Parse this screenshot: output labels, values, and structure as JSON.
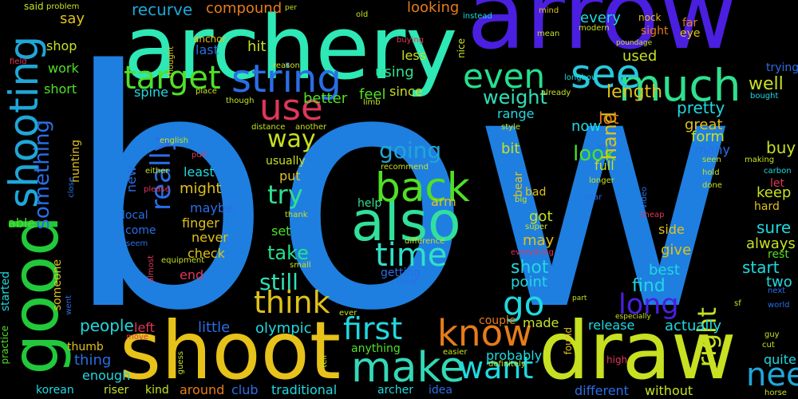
{
  "words": [
    {
      "text": "bow",
      "color": "#1e7fe0"
    },
    {
      "text": "arrow",
      "color": "#4a1fe0"
    },
    {
      "text": "archery",
      "color": "#2ee8b5"
    },
    {
      "text": "shoot",
      "color": "#e6c21a"
    },
    {
      "text": "draw",
      "color": "#c7e021"
    },
    {
      "text": "good",
      "color": "#22c93a"
    },
    {
      "text": "shooting",
      "color": "#1fa7d8"
    },
    {
      "text": "also",
      "color": "#31e09a"
    },
    {
      "text": "back",
      "color": "#4fe026"
    },
    {
      "text": "string",
      "color": "#2a6ee6"
    },
    {
      "text": "much",
      "color": "#2fe08f"
    },
    {
      "text": "see",
      "color": "#27c8dd"
    },
    {
      "text": "even",
      "color": "#24e08c"
    },
    {
      "text": "use",
      "color": "#e0365a"
    },
    {
      "text": "target",
      "color": "#4fe026"
    },
    {
      "text": "really",
      "color": "#2a6ee6"
    },
    {
      "text": "time",
      "color": "#31e0c8"
    },
    {
      "text": "make",
      "color": "#33d9b8"
    },
    {
      "text": "know",
      "color": "#e67c1a"
    },
    {
      "text": "go",
      "color": "#1fd9e0"
    },
    {
      "text": "think",
      "color": "#e0c21a"
    },
    {
      "text": "first",
      "color": "#1fd9e0"
    },
    {
      "text": "want",
      "color": "#1fd9e0"
    },
    {
      "text": "need",
      "color": "#1fa7d8"
    },
    {
      "text": "long",
      "color": "#4a1fe0"
    },
    {
      "text": "try",
      "color": "#2fe08f"
    },
    {
      "text": "way",
      "color": "#c7e021"
    },
    {
      "text": "going",
      "color": "#1fa7d8"
    },
    {
      "text": "still",
      "color": "#2fe0b5"
    },
    {
      "text": "take",
      "color": "#24e08c"
    },
    {
      "text": "right",
      "color": "#c7e021"
    },
    {
      "text": "something",
      "color": "#2a6ee6"
    },
    {
      "text": "people",
      "color": "#1fd9e0"
    },
    {
      "text": "look",
      "color": "#4fe026"
    },
    {
      "text": "weight",
      "color": "#2fe0b5"
    },
    {
      "text": "shot",
      "color": "#1fd9e0"
    },
    {
      "text": "find",
      "color": "#1fd9e0"
    },
    {
      "text": "hand",
      "color": "#e0c21a"
    },
    {
      "text": "length",
      "color": "#e0c21a"
    },
    {
      "text": "pretty",
      "color": "#1fd9e0"
    },
    {
      "text": "lot",
      "color": "#e67c1a"
    },
    {
      "text": "well",
      "color": "#c7e021"
    },
    {
      "text": "great",
      "color": "#e0c21a"
    },
    {
      "text": "form",
      "color": "#c7e021"
    },
    {
      "text": "buy",
      "color": "#c7e021"
    },
    {
      "text": "keep",
      "color": "#c7e021"
    },
    {
      "text": "sure",
      "color": "#1fd9e0"
    },
    {
      "text": "start",
      "color": "#1fd9e0"
    },
    {
      "text": "two",
      "color": "#1fd9e0"
    },
    {
      "text": "always",
      "color": "#c7e021"
    },
    {
      "text": "give",
      "color": "#e0c21a"
    },
    {
      "text": "side",
      "color": "#e0c21a"
    },
    {
      "text": "best",
      "color": "#1fd9e0"
    },
    {
      "text": "point",
      "color": "#1fd9e0"
    },
    {
      "text": "may",
      "color": "#e0c21a"
    },
    {
      "text": "got",
      "color": "#c7e021"
    },
    {
      "text": "bit",
      "color": "#c7e021"
    },
    {
      "text": "now",
      "color": "#1fd9e0"
    },
    {
      "text": "range",
      "color": "#1fd9e0"
    },
    {
      "text": "full",
      "color": "#c7e021"
    },
    {
      "text": "recurve",
      "color": "#1fa7d8"
    },
    {
      "text": "compound",
      "color": "#e67c1a"
    },
    {
      "text": "better",
      "color": "#4fe026"
    },
    {
      "text": "feel",
      "color": "#4fe026"
    },
    {
      "text": "looking",
      "color": "#e67c1a"
    },
    {
      "text": "every",
      "color": "#1fd9e0"
    },
    {
      "text": "used",
      "color": "#c7e021"
    },
    {
      "text": "hit",
      "color": "#c7e021"
    },
    {
      "text": "last",
      "color": "#2a6ee6"
    },
    {
      "text": "using",
      "color": "#2fe08f"
    },
    {
      "text": "since",
      "color": "#c7e021"
    },
    {
      "text": "less",
      "color": "#c7e021"
    },
    {
      "text": "say",
      "color": "#e0c21a"
    },
    {
      "text": "shop",
      "color": "#c7e021"
    },
    {
      "text": "work",
      "color": "#4fe026"
    },
    {
      "text": "short",
      "color": "#4fe026"
    },
    {
      "text": "spine",
      "color": "#1fd9e0"
    },
    {
      "text": "able",
      "color": "#4fe026"
    },
    {
      "text": "might",
      "color": "#e0c21a"
    },
    {
      "text": "maybe",
      "color": "#2a6ee6"
    },
    {
      "text": "finger",
      "color": "#e0c21a"
    },
    {
      "text": "never",
      "color": "#e0c21a"
    },
    {
      "text": "check",
      "color": "#e0c21a"
    },
    {
      "text": "end",
      "color": "#e0365a"
    },
    {
      "text": "least",
      "color": "#1fd9e0"
    },
    {
      "text": "new",
      "color": "#2a6ee6"
    },
    {
      "text": "local",
      "color": "#2a6ee6"
    },
    {
      "text": "come",
      "color": "#2a6ee6"
    },
    {
      "text": "usually",
      "color": "#c7e021"
    },
    {
      "text": "put",
      "color": "#e0c21a"
    },
    {
      "text": "set",
      "color": "#4fe026"
    },
    {
      "text": "arm",
      "color": "#e0c21a"
    },
    {
      "text": "help",
      "color": "#2fe08f"
    },
    {
      "text": "getting",
      "color": "#2a6ee6"
    },
    {
      "text": "little",
      "color": "#2a6ee6"
    },
    {
      "text": "olympic",
      "color": "#1fd9e0"
    },
    {
      "text": "thing",
      "color": "#2a6ee6"
    },
    {
      "text": "enough",
      "color": "#1fd9e0"
    },
    {
      "text": "thumb",
      "color": "#e0c21a"
    },
    {
      "text": "left",
      "color": "#e0365a"
    },
    {
      "text": "korean",
      "color": "#1fd9e0"
    },
    {
      "text": "riser",
      "color": "#c7e021"
    },
    {
      "text": "kind",
      "color": "#c7e021"
    },
    {
      "text": "around",
      "color": "#e67c1a"
    },
    {
      "text": "club",
      "color": "#2a6ee6"
    },
    {
      "text": "traditional",
      "color": "#1fd9e0"
    },
    {
      "text": "archer",
      "color": "#1fd9e0"
    },
    {
      "text": "idea",
      "color": "#2a6ee6"
    },
    {
      "text": "different",
      "color": "#2a6ee6"
    },
    {
      "text": "without",
      "color": "#c7e021"
    },
    {
      "text": "actually",
      "color": "#1fd9e0"
    },
    {
      "text": "release",
      "color": "#1fd9e0"
    },
    {
      "text": "made",
      "color": "#c7e021"
    },
    {
      "text": "couple",
      "color": "#e67c1a"
    },
    {
      "text": "probably",
      "color": "#1fd9e0"
    },
    {
      "text": "anything",
      "color": "#4fe026"
    },
    {
      "text": "quite",
      "color": "#1fd9e0"
    },
    {
      "text": "hunting",
      "color": "#e0c21a"
    },
    {
      "text": "someone",
      "color": "#e0c21a"
    },
    {
      "text": "started",
      "color": "#1fd9e0"
    },
    {
      "text": "practice",
      "color": "#4fe026"
    },
    {
      "text": "bear",
      "color": "#e0c21a"
    },
    {
      "text": "bad",
      "color": "#e0c21a"
    },
    {
      "text": "many",
      "color": "#2a6ee6"
    },
    {
      "text": "hard",
      "color": "#e0c21a"
    },
    {
      "text": "let",
      "color": "#e0365a"
    },
    {
      "text": "rest",
      "color": "#4fe026"
    },
    {
      "text": "far",
      "color": "#e67c1a"
    },
    {
      "text": "eye",
      "color": "#e0c21a"
    },
    {
      "text": "sight",
      "color": "#e67c1a"
    },
    {
      "text": "trying",
      "color": "#2a6ee6"
    },
    {
      "text": "said",
      "color": "#c7e021"
    },
    {
      "text": "problem",
      "color": "#c7e021"
    },
    {
      "text": "old",
      "color": "#c7e021"
    },
    {
      "text": "per",
      "color": "#c7e021"
    },
    {
      "text": "buying",
      "color": "#e0365a"
    },
    {
      "text": "nice",
      "color": "#c7e021"
    },
    {
      "text": "instead",
      "color": "#1fd9e0"
    },
    {
      "text": "mind",
      "color": "#e0c21a"
    },
    {
      "text": "mean",
      "color": "#c7e021"
    },
    {
      "text": "modern",
      "color": "#c7e021"
    },
    {
      "text": "nock",
      "color": "#e0c21a"
    },
    {
      "text": "poundage",
      "color": "#c7e021"
    },
    {
      "text": "longbow",
      "color": "#1fd9e0"
    },
    {
      "text": "bought",
      "color": "#1fd9e0"
    },
    {
      "text": "carbon",
      "color": "#1fd9e0"
    },
    {
      "text": "anchor",
      "color": "#e0c21a"
    },
    {
      "text": "thought",
      "color": "#e0c21a"
    },
    {
      "text": "reason",
      "color": "#c7e021"
    },
    {
      "text": "limb",
      "color": "#c7e021"
    },
    {
      "text": "place",
      "color": "#c7e021"
    },
    {
      "text": "though",
      "color": "#c7e021"
    },
    {
      "text": "already",
      "color": "#c7e021"
    },
    {
      "text": "style",
      "color": "#c7e021"
    },
    {
      "text": "distance",
      "color": "#c7e021"
    },
    {
      "text": "another",
      "color": "#c7e021"
    },
    {
      "text": "english",
      "color": "#c7e021"
    },
    {
      "text": "pull",
      "color": "#e0365a"
    },
    {
      "text": "either",
      "color": "#c7e021"
    },
    {
      "text": "please",
      "color": "#e0365a"
    },
    {
      "text": "close",
      "color": "#2a6ee6"
    },
    {
      "text": "field",
      "color": "#e0365a"
    },
    {
      "text": "seem",
      "color": "#2a6ee6"
    },
    {
      "text": "equipment",
      "color": "#c7e021"
    },
    {
      "text": "almost",
      "color": "#e0365a"
    },
    {
      "text": "went",
      "color": "#2a6ee6"
    },
    {
      "text": "thank",
      "color": "#c7e021"
    },
    {
      "text": "small",
      "color": "#c7e021"
    },
    {
      "text": "difference",
      "color": "#c7e021"
    },
    {
      "text": "likely",
      "color": "#2a6ee6"
    },
    {
      "text": "recommend",
      "color": "#c7e021"
    },
    {
      "text": "big",
      "color": "#c7e021"
    },
    {
      "text": "super",
      "color": "#c7e021"
    },
    {
      "text": "everything",
      "color": "#e0365a"
    },
    {
      "text": "love",
      "color": "#2a6ee6"
    },
    {
      "text": "making",
      "color": "#c7e021"
    },
    {
      "text": "seen",
      "color": "#c7e021"
    },
    {
      "text": "hold",
      "color": "#c7e021"
    },
    {
      "text": "done",
      "color": "#c7e021"
    },
    {
      "text": "longer",
      "color": "#c7e021"
    },
    {
      "text": "year",
      "color": "#2a6ee6"
    },
    {
      "text": "video",
      "color": "#2a6ee6"
    },
    {
      "text": "cheap",
      "color": "#e0365a"
    },
    {
      "text": "part",
      "color": "#c7e021"
    },
    {
      "text": "especially",
      "color": "#c7e021"
    },
    {
      "text": "high",
      "color": "#e0365a"
    },
    {
      "text": "found",
      "color": "#e0c21a"
    },
    {
      "text": "definitely",
      "color": "#c7e021"
    },
    {
      "text": "easier",
      "color": "#c7e021"
    },
    {
      "text": "ever",
      "color": "#c7e021"
    },
    {
      "text": "tell",
      "color": "#c7e021"
    },
    {
      "text": "guess",
      "color": "#c7e021"
    },
    {
      "text": "move",
      "color": "#e0365a"
    },
    {
      "text": "sf",
      "color": "#c7e021"
    },
    {
      "text": "next",
      "color": "#2a6ee6"
    },
    {
      "text": "world",
      "color": "#2a6ee6"
    },
    {
      "text": "cut",
      "color": "#c7e021"
    },
    {
      "text": "guy",
      "color": "#c7e021"
    },
    {
      "text": "horse",
      "color": "#c7e021"
    }
  ]
}
